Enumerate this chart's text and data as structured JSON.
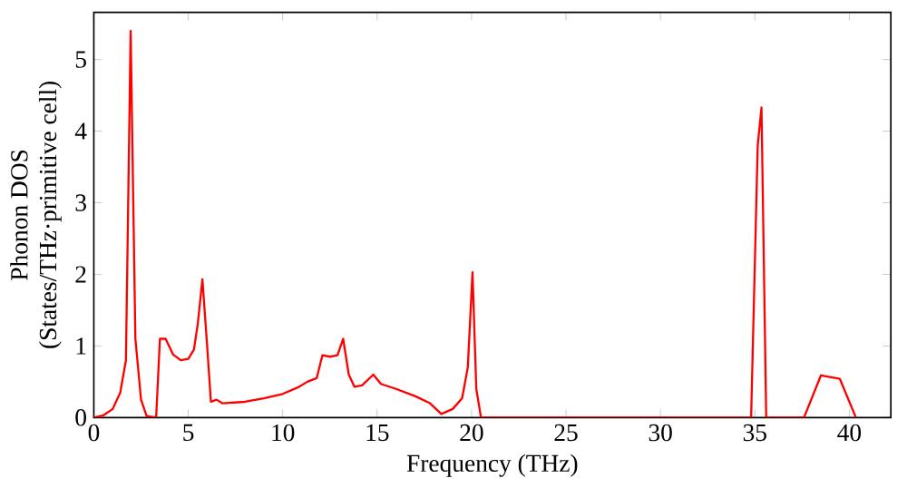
{
  "chart_data": {
    "type": "line",
    "xlabel": "Frequency (THz)",
    "ylabel": "Phonon DOS\n(States/THz·primitive cell)",
    "xlim": [
      0,
      42.2
    ],
    "ylim": [
      0,
      5.66
    ],
    "xticks": [
      0,
      5,
      10,
      15,
      20,
      25,
      30,
      35,
      40
    ],
    "yticks": [
      0,
      1,
      2,
      3,
      4,
      5
    ],
    "series": [
      {
        "color": "#ff0000",
        "x": [
          0,
          0.5,
          1.0,
          1.4,
          1.7,
          1.95,
          2.2,
          2.5,
          2.8,
          3.3,
          3.5,
          3.8,
          4.2,
          4.6,
          5.0,
          5.3,
          5.5,
          5.75,
          6.0,
          6.2,
          6.5,
          6.8,
          8,
          9,
          10,
          10.8,
          11.3,
          11.8,
          12.1,
          12.5,
          12.9,
          13.2,
          13.5,
          13.8,
          14.2,
          14.8,
          15.2,
          16,
          17,
          17.8,
          18.4,
          19.0,
          19.5,
          19.8,
          20.05,
          20.25,
          20.5,
          34.8,
          35.15,
          35.35,
          35.6,
          37.6,
          38.5,
          39.5,
          40.35
        ],
        "values": [
          0,
          0.03,
          0.12,
          0.35,
          0.8,
          5.4,
          1.1,
          0.25,
          0.02,
          0,
          1.1,
          1.1,
          0.88,
          0.8,
          0.82,
          0.95,
          1.3,
          1.93,
          1.0,
          0.22,
          0.25,
          0.2,
          0.22,
          0.27,
          0.33,
          0.42,
          0.5,
          0.55,
          0.87,
          0.85,
          0.87,
          1.1,
          0.6,
          0.43,
          0.45,
          0.6,
          0.47,
          0.4,
          0.3,
          0.2,
          0.05,
          0.12,
          0.27,
          0.7,
          2.03,
          0.4,
          0,
          0,
          3.8,
          4.33,
          0,
          0,
          0.59,
          0.54,
          0
        ]
      }
    ]
  }
}
